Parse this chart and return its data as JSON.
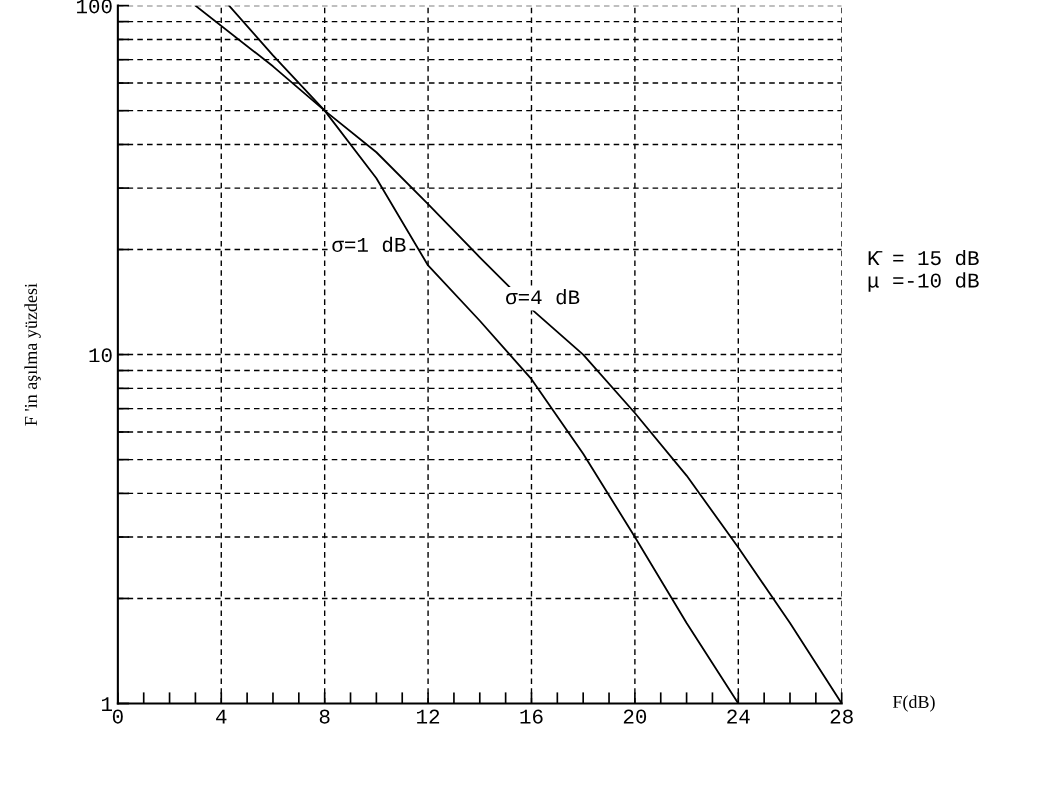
{
  "chart_data": {
    "type": "line",
    "xlabel": "F(dB)",
    "ylabel": "F 'in aşılma yüzdesi",
    "log": "y",
    "grid": true,
    "marker": "none",
    "line_style": "solid",
    "xlim": [
      0,
      28
    ],
    "ylim": [
      1,
      100
    ],
    "xticks": [
      0,
      {
        "value": 1,
        "label": null
      },
      {
        "value": 2,
        "label": null
      },
      {
        "value": 3,
        "label": null
      },
      4,
      {
        "value": 5,
        "label": null
      },
      {
        "value": 6,
        "label": null
      },
      {
        "value": 7,
        "label": null
      },
      8,
      {
        "value": 9,
        "label": null
      },
      {
        "value": 10,
        "label": null
      },
      {
        "value": 11,
        "label": null
      },
      12,
      {
        "value": 13,
        "label": null
      },
      {
        "value": 14,
        "label": null
      },
      {
        "value": 15,
        "label": null
      },
      16,
      {
        "value": 17,
        "label": null
      },
      {
        "value": 18,
        "label": null
      },
      {
        "value": 19,
        "label": null
      },
      20,
      {
        "value": 21,
        "label": null
      },
      {
        "value": 22,
        "label": null
      },
      {
        "value": 23,
        "label": null
      },
      24,
      {
        "value": 25,
        "label": null
      },
      {
        "value": 26,
        "label": null
      },
      {
        "value": 27,
        "label": null
      },
      28
    ],
    "yticks": [
      1,
      {
        "value": 2,
        "label": null
      },
      {
        "value": 3,
        "label": null
      },
      {
        "value": 4,
        "label": null
      },
      {
        "value": 5,
        "label": null
      },
      {
        "value": 6,
        "label": null
      },
      {
        "value": 7,
        "label": null
      },
      {
        "value": 8,
        "label": null
      },
      {
        "value": 9,
        "label": null
      },
      10,
      {
        "value": 20,
        "label": null
      },
      {
        "value": 30,
        "label": null
      },
      {
        "value": 40,
        "label": null
      },
      {
        "value": 50,
        "label": null
      },
      {
        "value": 60,
        "label": null
      },
      {
        "value": 70,
        "label": null
      },
      {
        "value": 80,
        "label": null
      },
      {
        "value": 90,
        "label": null
      },
      100
    ],
    "series": [
      {
        "color": "#000000",
        "x": [
          4.3,
          6,
          8,
          10,
          12,
          14,
          16,
          18,
          20,
          22,
          24
        ],
        "values": [
          100,
          72,
          50,
          32,
          18,
          12.5,
          8.5,
          5.2,
          3,
          1.7,
          1
        ]
      },
      {
        "color": "#000000",
        "x": [
          3,
          6,
          8,
          10,
          12,
          14,
          16,
          18,
          20,
          22,
          24,
          26,
          28
        ],
        "values": [
          100,
          67,
          50,
          38,
          27,
          19,
          13.5,
          10,
          6.8,
          4.5,
          2.8,
          1.7,
          1
        ]
      }
    ],
    "annotations": [
      "σ=1 dB",
      "σ=4 dB",
      "K̄ = 15 dB\nμ =-10 dB"
    ]
  }
}
